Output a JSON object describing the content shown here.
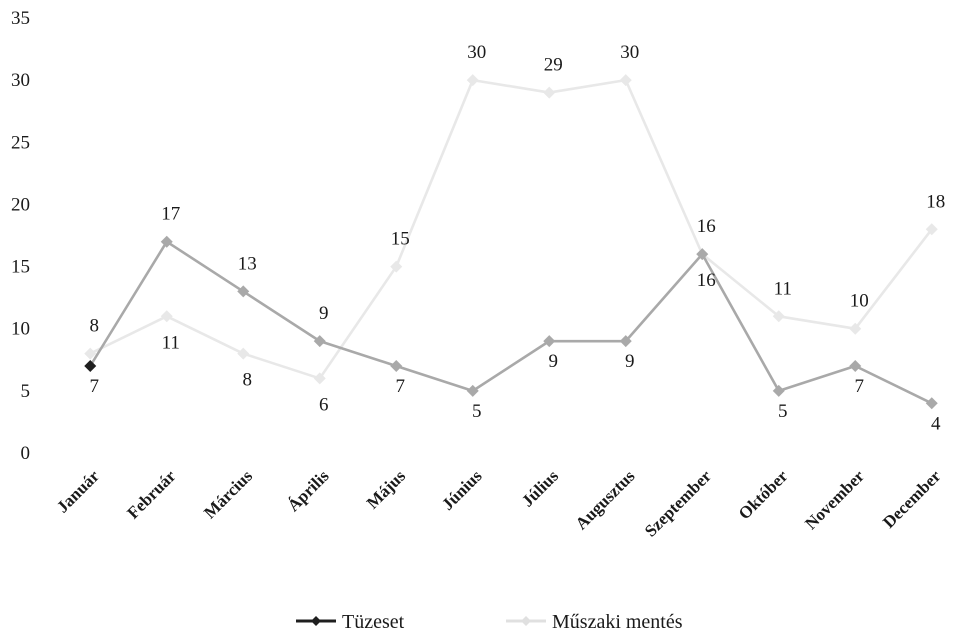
{
  "chart_data": {
    "type": "line",
    "title": "",
    "xlabel": "",
    "ylabel": "",
    "categories": [
      "Január",
      "Február",
      "Március",
      "Április",
      "Május",
      "Június",
      "Július",
      "Augusztus",
      "Szeptember",
      "Október",
      "November",
      "December"
    ],
    "ylim": [
      0,
      35
    ],
    "yticks": [
      0,
      5,
      10,
      15,
      20,
      25,
      30,
      35
    ],
    "grid": false,
    "legend_position": "bottom",
    "series": [
      {
        "name": "Tüzeset",
        "color": "#1f1f1f",
        "marker": "diamond",
        "values": [
          7,
          17,
          13,
          9,
          7,
          5,
          9,
          9,
          16,
          5,
          7,
          4
        ]
      },
      {
        "name": "Műszaki mentés",
        "color": "#e8e8e8",
        "marker": "diamond",
        "values": [
          8,
          11,
          8,
          6,
          15,
          30,
          29,
          30,
          16,
          11,
          10,
          18
        ]
      }
    ]
  }
}
